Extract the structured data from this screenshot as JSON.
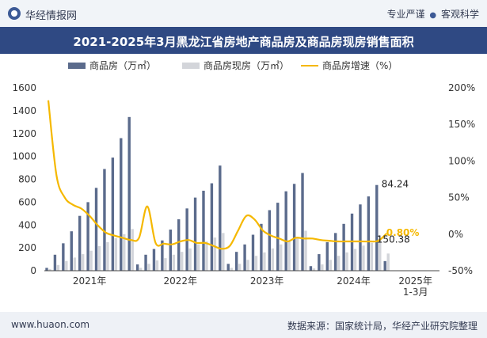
{
  "header": {
    "brand": "华经情报网",
    "tag1": "专业严谨",
    "tag_dot": "●",
    "tag2": "客观科学"
  },
  "chart_data": {
    "type": "bar",
    "title": "2021-2025年3月黑龙江省房地产商品房及商品房现房销售面积",
    "series": [
      {
        "name": "商品房（万㎡）",
        "type": "bar",
        "axis": "left",
        "color": "#5b6b8c",
        "values": [
          25,
          140,
          240,
          345,
          480,
          600,
          725,
          890,
          990,
          1160,
          1345,
          55,
          140,
          190,
          265,
          360,
          450,
          545,
          640,
          700,
          765,
          920,
          60,
          165,
          230,
          315,
          410,
          530,
          595,
          695,
          760,
          855,
          40,
          145,
          250,
          330,
          410,
          500,
          580,
          650,
          750,
          84.24
        ]
      },
      {
        "name": "商品房现房（万㎡）",
        "type": "bar",
        "axis": "left",
        "color": "#d3d5da",
        "values": [
          15,
          50,
          85,
          115,
          145,
          175,
          215,
          250,
          285,
          320,
          365,
          25,
          60,
          90,
          110,
          140,
          165,
          195,
          230,
          255,
          290,
          330,
          25,
          60,
          95,
          130,
          160,
          195,
          230,
          255,
          290,
          350,
          20,
          55,
          95,
          130,
          160,
          190,
          220,
          245,
          275,
          150.38
        ]
      },
      {
        "name": "商品房增速（%）",
        "type": "line",
        "axis": "right",
        "color": "#f5b800",
        "values": [
          183,
          80,
          50,
          40,
          35,
          25,
          12,
          2,
          -2,
          -5,
          -8,
          -5,
          38,
          -12,
          -13,
          -14,
          -10,
          -8,
          -12,
          -12,
          -16,
          -20,
          -16,
          5,
          25,
          20,
          5,
          -2,
          -6,
          -10,
          -5,
          -6,
          -6,
          -8,
          -9,
          -10,
          -10,
          -10,
          -10,
          -10,
          -9,
          0.8
        ]
      }
    ],
    "x_axis_labels": [
      {
        "label": "2021年",
        "index": 5
      },
      {
        "label": "2022年",
        "index": 16
      },
      {
        "label": "2023年",
        "index": 26.5
      },
      {
        "label": "2024年",
        "index": 37
      },
      {
        "label": "2025年\n1-3月",
        "index": 44.5
      }
    ],
    "y_left": {
      "min": 0,
      "max": 1600,
      "ticks": [
        0,
        200,
        400,
        600,
        800,
        1000,
        1200,
        1400,
        1600
      ]
    },
    "y_right": {
      "min": -50,
      "max": 200,
      "ticks": [
        "-50%",
        "0%",
        "50%",
        "100%",
        "150%",
        "200%"
      ]
    },
    "annotations": [
      {
        "text": "0.80%",
        "series": 2,
        "index": 40,
        "color": "#f5b800"
      },
      {
        "text": "150.38",
        "series": 1,
        "index": 40,
        "color": "#222222"
      },
      {
        "text": "84.24",
        "series": 0,
        "index": 40,
        "color": "#222222"
      }
    ],
    "legend_position": "top"
  },
  "footer": {
    "website": "www.huaon.com",
    "source": "数据来源：国家统计局，华经产业研究院整理"
  },
  "colors": {
    "title_bg": "#2f4983",
    "axis": "#444444"
  }
}
